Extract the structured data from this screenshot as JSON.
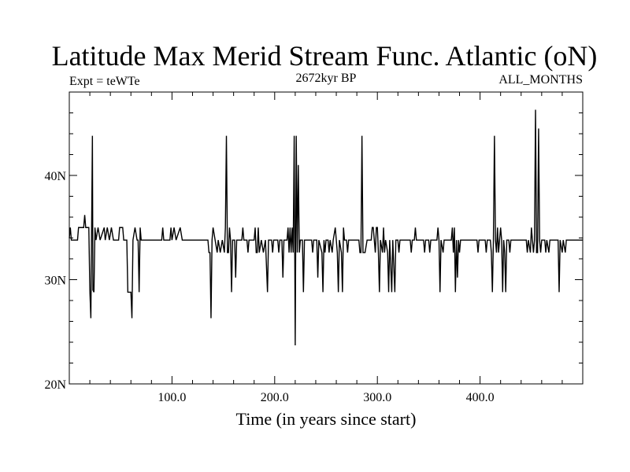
{
  "chart_data": {
    "type": "line",
    "title": "Latitude Max Merid Stream Func. Atlantic (oN)",
    "subtitle_left": "Expt = teWTe",
    "subtitle_center": "2672kyr BP",
    "subtitle_right": "ALL_MONTHS",
    "xlabel": "Time (in years since start)",
    "ylabel": "",
    "xlim": [
      0,
      500
    ],
    "ylim": [
      20,
      48
    ],
    "x_ticks": [
      {
        "value": 100,
        "label": "100.0"
      },
      {
        "value": 200,
        "label": "200.0"
      },
      {
        "value": 300,
        "label": "300.0"
      },
      {
        "value": 400,
        "label": "400.0"
      }
    ],
    "y_ticks": [
      {
        "value": 20,
        "label": "20N"
      },
      {
        "value": 30,
        "label": "30N"
      },
      {
        "value": 40,
        "label": "40N"
      }
    ],
    "grid": false,
    "series": [
      {
        "color": "#000000",
        "points": [
          [
            0,
            34
          ],
          [
            1,
            35
          ],
          [
            2,
            33.8
          ],
          [
            8,
            33.8
          ],
          [
            9,
            35
          ],
          [
            14,
            35
          ],
          [
            15,
            36.2
          ],
          [
            16,
            35
          ],
          [
            19,
            35
          ],
          [
            20,
            29
          ],
          [
            21,
            26.3
          ],
          [
            22,
            38
          ],
          [
            22.5,
            43.8
          ],
          [
            23,
            29
          ],
          [
            24,
            28.8
          ],
          [
            25,
            35
          ],
          [
            26,
            33.8
          ],
          [
            28,
            35
          ],
          [
            30,
            33.8
          ],
          [
            34,
            35
          ],
          [
            35,
            33.8
          ],
          [
            37,
            35
          ],
          [
            39,
            33.8
          ],
          [
            41,
            35
          ],
          [
            43,
            33.8
          ],
          [
            48,
            33.8
          ],
          [
            49,
            35
          ],
          [
            52,
            35
          ],
          [
            53,
            33.8
          ],
          [
            56,
            33.8
          ],
          [
            57,
            28.8
          ],
          [
            60,
            28.8
          ],
          [
            61,
            26.3
          ],
          [
            62,
            33.8
          ],
          [
            64,
            35
          ],
          [
            66,
            33.8
          ],
          [
            67,
            33.8
          ],
          [
            68,
            28.8
          ],
          [
            69,
            35
          ],
          [
            70,
            33.8
          ],
          [
            90,
            33.8
          ],
          [
            91,
            35
          ],
          [
            92,
            33.8
          ],
          [
            98,
            33.8
          ],
          [
            99,
            35
          ],
          [
            100,
            33.8
          ],
          [
            102,
            35
          ],
          [
            104,
            33.8
          ],
          [
            108,
            35
          ],
          [
            110,
            33.8
          ],
          [
            135,
            33.8
          ],
          [
            136,
            32.6
          ],
          [
            137,
            32.6
          ],
          [
            138,
            26.3
          ],
          [
            139,
            33.8
          ],
          [
            140,
            35
          ],
          [
            142,
            33.8
          ],
          [
            144,
            32.6
          ],
          [
            145,
            33.8
          ],
          [
            147,
            32.6
          ],
          [
            149,
            33.8
          ],
          [
            151,
            32.6
          ],
          [
            152,
            35
          ],
          [
            153,
            43.8
          ],
          [
            154,
            32.6
          ],
          [
            155,
            32.6
          ],
          [
            156,
            35
          ],
          [
            157,
            33.8
          ],
          [
            158,
            28.8
          ],
          [
            159,
            33.8
          ],
          [
            161,
            33.8
          ],
          [
            162,
            30.2
          ],
          [
            163,
            33.8
          ],
          [
            168,
            33.8
          ],
          [
            169,
            35
          ],
          [
            170,
            33.8
          ],
          [
            173,
            33.8
          ],
          [
            174,
            32.6
          ],
          [
            175,
            33.8
          ],
          [
            180,
            33.8
          ],
          [
            181,
            35
          ],
          [
            182,
            32.6
          ],
          [
            183,
            32.6
          ],
          [
            184,
            35
          ],
          [
            185,
            32.6
          ],
          [
            187,
            33.8
          ],
          [
            189,
            32.6
          ],
          [
            191,
            33.8
          ],
          [
            193,
            28.8
          ],
          [
            194,
            33.8
          ],
          [
            197,
            33.8
          ],
          [
            198,
            32.6
          ],
          [
            199,
            33.8
          ],
          [
            203,
            33.8
          ],
          [
            204,
            32.6
          ],
          [
            205,
            33.8
          ],
          [
            207,
            33.8
          ],
          [
            208,
            30.2
          ],
          [
            209,
            33.8
          ],
          [
            212,
            33.8
          ],
          [
            213,
            35
          ],
          [
            214,
            32.6
          ],
          [
            215,
            35
          ],
          [
            216,
            32.6
          ],
          [
            217,
            35
          ],
          [
            218,
            32.6
          ],
          [
            219,
            43.8
          ],
          [
            220,
            23.7
          ],
          [
            221,
            43.8
          ],
          [
            222,
            32.6
          ],
          [
            223,
            41
          ],
          [
            224,
            32.6
          ],
          [
            225,
            33.8
          ],
          [
            227,
            33.8
          ],
          [
            228,
            28.8
          ],
          [
            229,
            33.8
          ],
          [
            236,
            33.8
          ],
          [
            237,
            32.6
          ],
          [
            238,
            33.8
          ],
          [
            241,
            33.8
          ],
          [
            242,
            30.2
          ],
          [
            243,
            33.8
          ],
          [
            246,
            32.6
          ],
          [
            247,
            28.8
          ],
          [
            248,
            33.8
          ],
          [
            249,
            32.6
          ],
          [
            250,
            33.8
          ],
          [
            252,
            33.8
          ],
          [
            253,
            32.6
          ],
          [
            254,
            33.8
          ],
          [
            256,
            32.6
          ],
          [
            257,
            33.8
          ],
          [
            259,
            35
          ],
          [
            261,
            32.6
          ],
          [
            262,
            28.8
          ],
          [
            263,
            33.8
          ],
          [
            265,
            32.6
          ],
          [
            266,
            28.8
          ],
          [
            267,
            35
          ],
          [
            268,
            33.8
          ],
          [
            270,
            33.8
          ],
          [
            271,
            32.6
          ],
          [
            272,
            33.8
          ],
          [
            282,
            33.8
          ],
          [
            283,
            32.6
          ],
          [
            284,
            32.6
          ],
          [
            285,
            43.8
          ],
          [
            286,
            32.6
          ],
          [
            288,
            32.6
          ],
          [
            290,
            33.8
          ],
          [
            294,
            33.8
          ],
          [
            295,
            35
          ],
          [
            296,
            35
          ],
          [
            297,
            33.8
          ],
          [
            298,
            32.6
          ],
          [
            299,
            35
          ],
          [
            300,
            35
          ],
          [
            301,
            32.6
          ],
          [
            302,
            28.8
          ],
          [
            303,
            33.8
          ],
          [
            305,
            32.6
          ],
          [
            306,
            35
          ],
          [
            307,
            32.6
          ],
          [
            308,
            33.8
          ],
          [
            310,
            32.6
          ],
          [
            311,
            28.8
          ],
          [
            312,
            33.8
          ],
          [
            314,
            28.8
          ],
          [
            315,
            33.8
          ],
          [
            317,
            28.8
          ],
          [
            318,
            33.8
          ],
          [
            320,
            33.8
          ],
          [
            321,
            32.6
          ],
          [
            322,
            33.8
          ],
          [
            332,
            33.8
          ],
          [
            333,
            32.6
          ],
          [
            334,
            33.8
          ],
          [
            336,
            33.8
          ],
          [
            337,
            35
          ],
          [
            338,
            33.8
          ],
          [
            345,
            33.8
          ],
          [
            346,
            32.6
          ],
          [
            347,
            33.8
          ],
          [
            350,
            33.8
          ],
          [
            351,
            32.6
          ],
          [
            352,
            33.8
          ],
          [
            358,
            33.8
          ],
          [
            359,
            35
          ],
          [
            360,
            33.8
          ],
          [
            361,
            28.8
          ],
          [
            362,
            33.8
          ],
          [
            364,
            32.6
          ],
          [
            365,
            33.8
          ],
          [
            372,
            33.8
          ],
          [
            373,
            35
          ],
          [
            374,
            32.6
          ],
          [
            375,
            35
          ],
          [
            376,
            28.8
          ],
          [
            377,
            33.8
          ],
          [
            378,
            30.2
          ],
          [
            379,
            33.8
          ],
          [
            380,
            32.6
          ],
          [
            381,
            33.8
          ],
          [
            397,
            33.8
          ],
          [
            398,
            32.6
          ],
          [
            399,
            33.8
          ],
          [
            405,
            33.8
          ],
          [
            406,
            32.6
          ],
          [
            407,
            33.8
          ],
          [
            410,
            33.8
          ],
          [
            411,
            32.6
          ],
          [
            412,
            28.8
          ],
          [
            413,
            33.8
          ],
          [
            414,
            43.8
          ],
          [
            415,
            33.8
          ],
          [
            416,
            32.6
          ],
          [
            417,
            35
          ],
          [
            418,
            32.6
          ],
          [
            420,
            35
          ],
          [
            421,
            33.8
          ],
          [
            422,
            28.8
          ],
          [
            423,
            33.8
          ],
          [
            424,
            32.6
          ],
          [
            425,
            28.8
          ],
          [
            426,
            33.8
          ],
          [
            428,
            33.8
          ],
          [
            429,
            32.6
          ],
          [
            430,
            33.8
          ],
          [
            445,
            33.8
          ],
          [
            446,
            32.6
          ],
          [
            447,
            33.8
          ],
          [
            449,
            32.6
          ],
          [
            450,
            35
          ],
          [
            451,
            33.8
          ],
          [
            452,
            32.6
          ],
          [
            453,
            33.8
          ],
          [
            454,
            46.3
          ],
          [
            455,
            32.6
          ],
          [
            456,
            32.6
          ],
          [
            457,
            44.5
          ],
          [
            458,
            33.8
          ],
          [
            459,
            32.6
          ],
          [
            460,
            33.8
          ],
          [
            463,
            33.8
          ],
          [
            464,
            32.6
          ],
          [
            465,
            33.8
          ],
          [
            467,
            32.6
          ],
          [
            468,
            33.8
          ],
          [
            476,
            33.8
          ],
          [
            477,
            28.8
          ],
          [
            478,
            33.8
          ],
          [
            480,
            32.6
          ],
          [
            481,
            33.8
          ],
          [
            483,
            32.6
          ],
          [
            484,
            33.8
          ],
          [
            500,
            33.8
          ]
        ]
      }
    ]
  }
}
